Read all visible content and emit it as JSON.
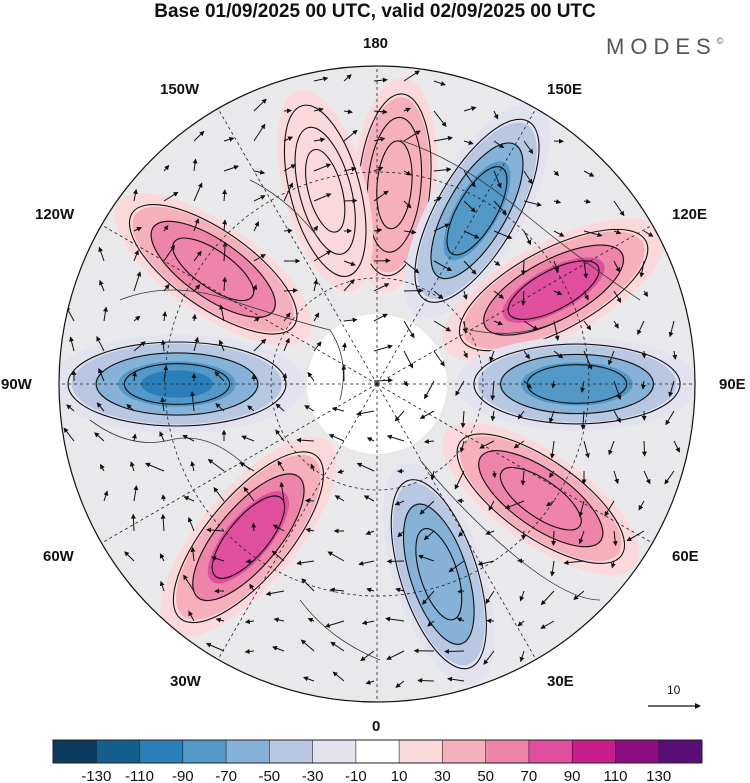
{
  "title": "Base 01/09/2025 00 UTC, valid 02/09/2025 00 UTC",
  "brand": "MODES",
  "brand_mark": "©",
  "longitude_labels": {
    "lon_180": "180",
    "lon_150e": "150E",
    "lon_120e": "120E",
    "lon_90e": "90E",
    "lon_60e": "60E",
    "lon_30e": "30E",
    "lon_0": "0",
    "lon_30w": "30W",
    "lon_60w": "60W",
    "lon_90w": "90W",
    "lon_120w": "120W",
    "lon_150w": "150W"
  },
  "reference_vector": {
    "value": "10"
  },
  "colorbar": {
    "tick_labels": [
      "-130",
      "-110",
      "-90",
      "-70",
      "-50",
      "-30",
      "-10",
      "10",
      "30",
      "50",
      "70",
      "90",
      "110",
      "130"
    ],
    "colors": [
      "#0b3a5c",
      "#155f8e",
      "#2b7fb8",
      "#5399c8",
      "#86b2d8",
      "#b8c8e2",
      "#e3e3f0",
      "#ffffff",
      "#fbd8da",
      "#f6b0bc",
      "#ee84aa",
      "#e04f9e",
      "#c81d8b",
      "#8e0e82",
      "#5a0f78"
    ]
  },
  "anomaly_cells": [
    {
      "lon": 175,
      "value": 35,
      "color": "#fbd8da"
    },
    {
      "lon": 150,
      "value": -75,
      "color": "#4a8fc4"
    },
    {
      "lon": 118,
      "value": 80,
      "color": "#e04f9e"
    },
    {
      "lon": 90,
      "value": -75,
      "color": "#4a8fc4"
    },
    {
      "lon": 55,
      "value": 60,
      "color": "#ee84aa"
    },
    {
      "lon": 18,
      "value": -60,
      "color": "#5399c8"
    },
    {
      "lon": -40,
      "value": 85,
      "color": "#e04f9e"
    },
    {
      "lon": -90,
      "value": -95,
      "color": "#2b7fb8"
    },
    {
      "lon": -125,
      "value": 60,
      "color": "#ee84aa"
    },
    {
      "lon": -165,
      "value": 25,
      "color": "#fbd8da"
    }
  ]
}
